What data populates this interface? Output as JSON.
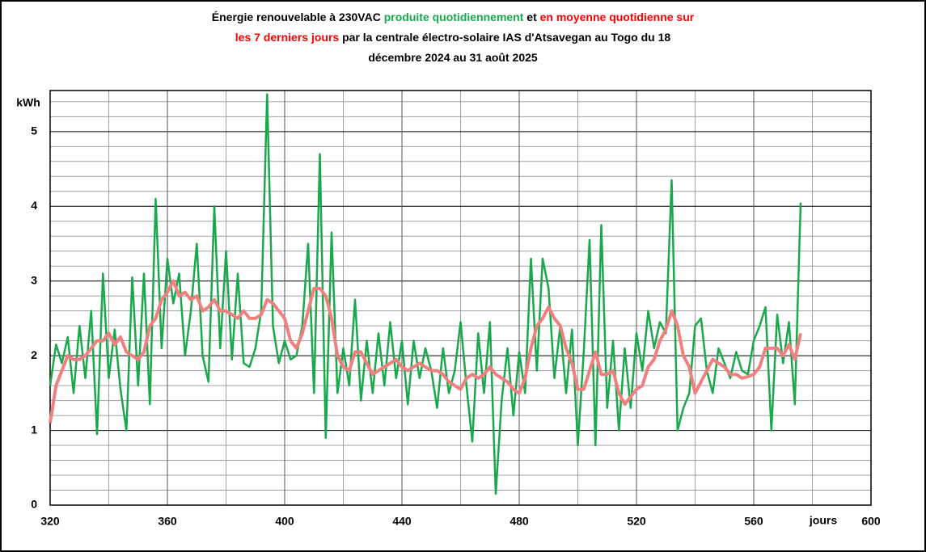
{
  "chart_data": {
    "type": "line",
    "title_lines": [
      [
        {
          "text": "Énergie renouvelable à 230V",
          "color": "#000000"
        },
        {
          "text": "AC",
          "color": "#000000",
          "small": true
        },
        {
          "text": " produite quotidiennement",
          "color": "#1aa84c"
        },
        {
          "text": " et ",
          "color": "#000000"
        },
        {
          "text": "en moyenne quotidienne sur",
          "color": "#ff0000"
        }
      ],
      [
        {
          "text": "les 7 derniers jours",
          "color": "#ff0000"
        },
        {
          "text": " par la centrale électro-solaire IAS d'Atsavegan au Togo du 18",
          "color": "#000000"
        }
      ],
      [
        {
          "text": "décembre 2024 au 31 août 2025",
          "color": "#000000"
        }
      ]
    ],
    "xlabel": "jours",
    "ylabel": "kWh",
    "x": [
      320,
      322,
      324,
      326,
      328,
      330,
      332,
      334,
      336,
      338,
      340,
      342,
      344,
      346,
      348,
      350,
      352,
      354,
      356,
      358,
      360,
      362,
      364,
      366,
      368,
      370,
      372,
      374,
      376,
      378,
      380,
      382,
      384,
      386,
      388,
      390,
      392,
      394,
      396,
      398,
      400,
      402,
      404,
      406,
      408,
      410,
      412,
      414,
      416,
      418,
      420,
      422,
      424,
      426,
      428,
      430,
      432,
      434,
      436,
      438,
      440,
      442,
      444,
      446,
      448,
      450,
      452,
      454,
      456,
      458,
      460,
      462,
      464,
      466,
      468,
      470,
      472,
      474,
      476,
      478,
      480,
      482,
      484,
      486,
      488,
      490,
      492,
      494,
      496,
      498,
      500,
      502,
      504,
      506,
      508,
      510,
      512,
      514,
      516,
      518,
      520,
      522,
      524,
      526,
      528,
      530,
      532,
      534,
      536,
      538,
      540,
      542,
      544,
      546,
      548,
      550,
      552,
      554,
      556,
      558,
      560,
      562,
      564,
      566,
      568,
      570,
      572,
      574,
      576
    ],
    "series": [
      {
        "name": "produite quotidiennement",
        "color": "#1aa84c",
        "width": 2.5,
        "values": [
          1.6,
          2.15,
          1.9,
          2.25,
          1.5,
          2.4,
          1.7,
          2.6,
          0.95,
          3.1,
          1.7,
          2.35,
          1.55,
          1.0,
          3.05,
          1.6,
          3.1,
          1.35,
          4.1,
          2.1,
          3.3,
          2.7,
          3.1,
          2.0,
          2.6,
          3.5,
          2.0,
          1.65,
          4.0,
          2.1,
          3.4,
          1.95,
          3.1,
          1.9,
          1.85,
          2.1,
          2.6,
          5.5,
          2.4,
          1.9,
          2.2,
          1.95,
          2.0,
          2.4,
          3.5,
          1.5,
          4.7,
          0.9,
          3.65,
          1.5,
          2.1,
          1.6,
          2.75,
          1.4,
          2.2,
          1.5,
          2.3,
          1.6,
          2.45,
          1.7,
          2.2,
          1.35,
          2.2,
          1.7,
          2.1,
          1.8,
          1.3,
          2.1,
          1.5,
          1.8,
          2.45,
          1.6,
          0.85,
          2.3,
          1.5,
          2.45,
          0.15,
          1.4,
          2.1,
          1.2,
          2.05,
          1.5,
          3.3,
          1.8,
          3.3,
          2.9,
          1.7,
          2.4,
          1.5,
          2.35,
          0.8,
          2.05,
          3.55,
          0.8,
          3.75,
          1.3,
          2.2,
          1.0,
          2.1,
          1.3,
          2.3,
          1.8,
          2.6,
          2.1,
          2.45,
          2.3,
          4.35,
          1.0,
          1.3,
          1.5,
          2.4,
          2.5,
          1.8,
          1.5,
          2.1,
          1.9,
          1.7,
          2.05,
          1.8,
          1.75,
          2.2,
          2.4,
          2.65,
          1.0,
          2.55,
          1.9,
          2.45,
          1.35,
          4.05
        ]
      },
      {
        "name": "en moyenne quotidienne sur les 7 derniers jours",
        "color": "#f08080",
        "width": 4,
        "values": [
          1.1,
          1.6,
          1.8,
          2.0,
          1.95,
          1.95,
          2.0,
          2.1,
          2.2,
          2.2,
          2.3,
          2.15,
          2.25,
          2.05,
          2.0,
          1.95,
          2.05,
          2.4,
          2.5,
          2.75,
          2.85,
          3.0,
          2.8,
          2.85,
          2.75,
          2.8,
          2.6,
          2.65,
          2.75,
          2.6,
          2.6,
          2.55,
          2.5,
          2.6,
          2.5,
          2.5,
          2.55,
          2.75,
          2.7,
          2.6,
          2.5,
          2.2,
          2.1,
          2.3,
          2.6,
          2.9,
          2.9,
          2.8,
          2.5,
          2.0,
          1.85,
          1.8,
          2.05,
          2.05,
          1.9,
          1.75,
          1.8,
          1.85,
          1.9,
          1.95,
          1.85,
          1.8,
          1.85,
          1.9,
          1.85,
          1.8,
          1.8,
          1.75,
          1.65,
          1.6,
          1.55,
          1.7,
          1.75,
          1.7,
          1.75,
          1.85,
          1.75,
          1.7,
          1.65,
          1.55,
          1.5,
          1.7,
          2.1,
          2.4,
          2.5,
          2.65,
          2.5,
          2.4,
          2.1,
          1.9,
          1.55,
          1.55,
          1.8,
          2.05,
          1.75,
          1.75,
          1.8,
          1.5,
          1.35,
          1.45,
          1.55,
          1.6,
          1.85,
          1.95,
          2.2,
          2.35,
          2.6,
          2.4,
          2.0,
          1.85,
          1.5,
          1.65,
          1.8,
          1.95,
          1.9,
          1.85,
          1.75,
          1.75,
          1.7,
          1.72,
          1.75,
          1.85,
          2.1,
          2.1,
          2.1,
          2.0,
          2.15,
          1.95,
          2.3
        ]
      }
    ],
    "xlim": [
      320,
      600
    ],
    "ylim": [
      0,
      5.55
    ],
    "xticks": [
      320,
      360,
      400,
      440,
      480,
      520,
      560,
      600
    ],
    "yticks": [
      0,
      1,
      2,
      3,
      4,
      5
    ],
    "x_minor_ticks": [
      340,
      380,
      420,
      460,
      500,
      540,
      580
    ],
    "y_minor_ticks": [
      0.2,
      0.4,
      0.6,
      0.8,
      1.2,
      1.4,
      1.6,
      1.8,
      2.2,
      2.4,
      2.6,
      2.8,
      3.2,
      3.4,
      3.6,
      3.8,
      4.2,
      4.4,
      4.6,
      4.8,
      5.2,
      5.4
    ],
    "grid": true
  }
}
